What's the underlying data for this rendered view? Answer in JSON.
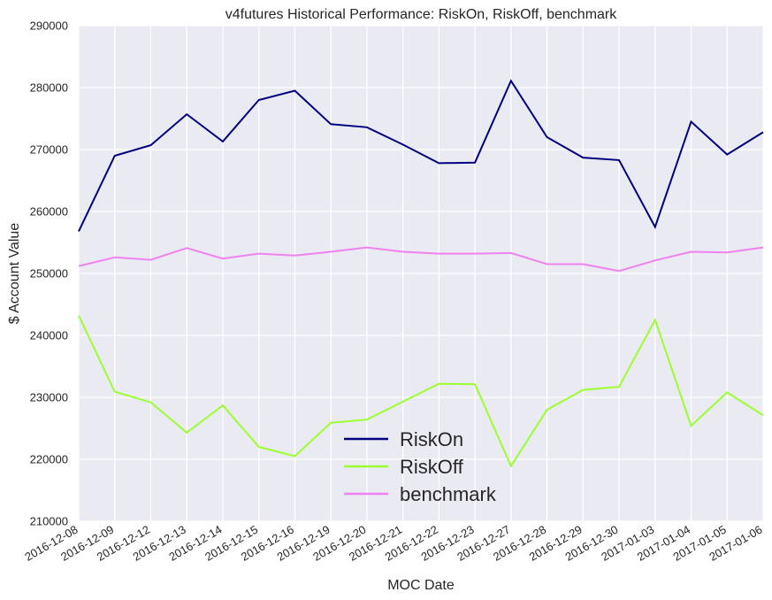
{
  "chart_data": {
    "type": "line",
    "title": "v4futures Historical Performance: RiskOn, RiskOff, benchmark",
    "xlabel": "MOC Date",
    "ylabel": "$ Account Value",
    "categories": [
      "2016-12-08",
      "2016-12-09",
      "2016-12-12",
      "2016-12-13",
      "2016-12-14",
      "2016-12-15",
      "2016-12-16",
      "2016-12-19",
      "2016-12-20",
      "2016-12-21",
      "2016-12-22",
      "2016-12-23",
      "2016-12-27",
      "2016-12-28",
      "2016-12-29",
      "2016-12-30",
      "2017-01-03",
      "2017-01-04",
      "2017-01-05",
      "2017-01-06"
    ],
    "ylim": [
      210000,
      290000
    ],
    "yticks": [
      "210000",
      "220000",
      "230000",
      "240000",
      "250000",
      "260000",
      "270000",
      "280000",
      "290000"
    ],
    "grid": true,
    "legend_position": "bottom-center",
    "series": [
      {
        "name": "RiskOn",
        "color": "#000080",
        "values": [
          256800,
          269000,
          270700,
          275700,
          271300,
          278000,
          279500,
          274100,
          273600,
          270800,
          267800,
          267900,
          281100,
          272000,
          268700,
          268300,
          257500,
          274500,
          269200,
          272800
        ]
      },
      {
        "name": "RiskOff",
        "color": "#9aff2e",
        "values": [
          243200,
          230900,
          229200,
          224300,
          228700,
          222000,
          220500,
          225900,
          226400,
          229300,
          232200,
          232100,
          218900,
          228000,
          231200,
          231700,
          242500,
          225400,
          230800,
          227100
        ]
      },
      {
        "name": "benchmark",
        "color": "#ee82ee",
        "values": [
          251200,
          252600,
          252200,
          254100,
          252400,
          253200,
          252900,
          253500,
          254200,
          253500,
          253200,
          253200,
          253300,
          251500,
          251500,
          250400,
          252100,
          253500,
          253400,
          254200
        ]
      }
    ]
  },
  "colors": {
    "plot_background": "#eaeaf2",
    "grid": "#ffffff",
    "text": "#262626"
  }
}
